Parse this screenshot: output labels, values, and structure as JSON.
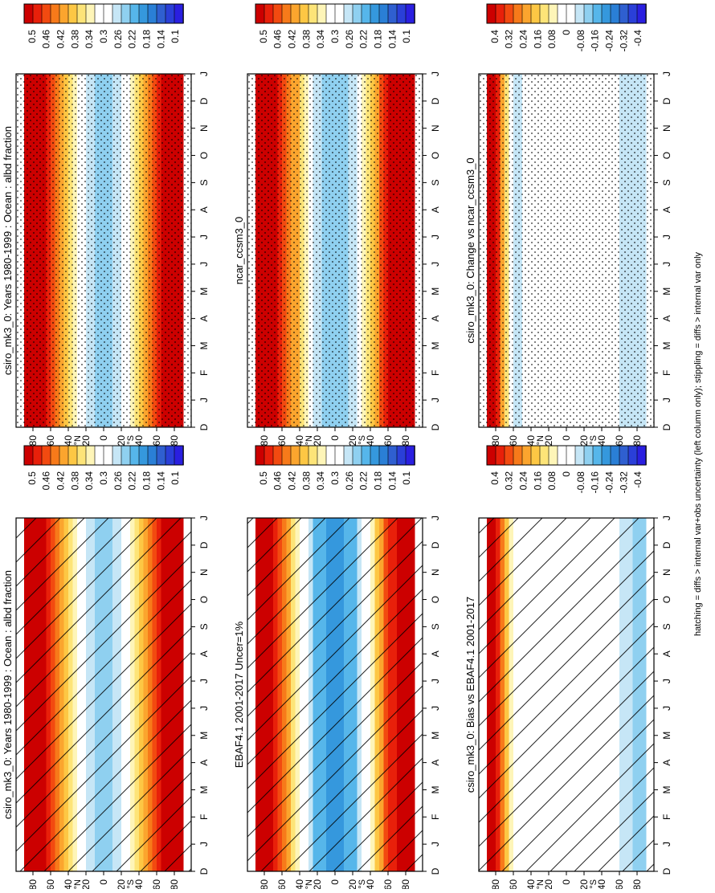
{
  "footnote": "hatching = diffs > internal var+obs uncertainty (left column only); stippling = diffs > internal var only",
  "months": [
    "D",
    "J",
    "F",
    "M",
    "A",
    "M",
    "J",
    "J",
    "A",
    "S",
    "O",
    "N",
    "D",
    "J"
  ],
  "lat_ticks": [
    "80",
    "60",
    "40",
    "20",
    "0",
    "20",
    "40",
    "60",
    "80"
  ],
  "lat_tick_values": [
    80,
    60,
    40,
    20,
    0,
    -20,
    -40,
    -60,
    -80
  ],
  "hemisphere_labels": {
    "north": "N",
    "south": "S"
  },
  "colorbars": {
    "abs": {
      "labels": [
        "0.5",
        "0.46",
        "0.42",
        "0.38",
        "0.34",
        "0.3",
        "0.26",
        "0.22",
        "0.18",
        "0.14",
        "0.1"
      ],
      "colors": [
        "#cc0000",
        "#e8200a",
        "#f24a10",
        "#f77a1a",
        "#fba52e",
        "#fdc744",
        "#fde478",
        "#fef5b8",
        "#ffffff",
        "#ffffff",
        "#c6e6f6",
        "#8fd0f0",
        "#56b6ea",
        "#3598dd",
        "#2a7fd6",
        "#2f5fd0",
        "#2a3fd8",
        "#2a1fe0"
      ]
    },
    "diff": {
      "labels": [
        "0.4",
        "0.32",
        "0.24",
        "0.16",
        "0.08",
        "0",
        "-0.08",
        "-0.16",
        "-0.24",
        "-0.32",
        "-0.4"
      ],
      "colors": [
        "#cc0000",
        "#e8200a",
        "#f24a10",
        "#f77a1a",
        "#fba52e",
        "#fdc744",
        "#fde478",
        "#fef5b8",
        "#ffffff",
        "#ffffff",
        "#c6e6f6",
        "#8fd0f0",
        "#56b6ea",
        "#3598dd",
        "#2a7fd6",
        "#2f5fd0",
        "#2a3fd8",
        "#2a1fe0"
      ]
    }
  },
  "panels": [
    {
      "title": "csiro_mk3_0: Years 1980-1999 : Ocean : albd fraction",
      "overlay": "hatch"
    },
    {
      "title": "EBAF4.1 2001-2017 Uncer=1%",
      "overlay": "hatch"
    },
    {
      "title": "csiro_mk3_0: Bias vs EBAF4.1 2001-2017",
      "overlay": "hatch"
    },
    {
      "title": "csiro_mk3_0: Years 1980-1999 : Ocean : albd fraction",
      "overlay": "stipple"
    },
    {
      "title": "ncar_ccsm3_0",
      "overlay": "stipple"
    },
    {
      "title": "csiro_mk3_0: Change vs ncar_ccsm3_0",
      "overlay": "stipple"
    }
  ],
  "chart_data": [
    {
      "type": "heatmap",
      "title": "csiro_mk3_0: Years 1980-1999 : Ocean : albd fraction",
      "x": [
        "D",
        "J",
        "F",
        "M",
        "A",
        "M",
        "J",
        "J",
        "A",
        "S",
        "O",
        "N",
        "D",
        "J"
      ],
      "y_range": [
        -90,
        90
      ],
      "zlim": [
        0.1,
        0.5
      ],
      "units": "fraction",
      "profile_lat": [
        80,
        60,
        40,
        20,
        0,
        -20,
        -40,
        -60,
        -80
      ],
      "profile_value": [
        0.52,
        0.46,
        0.36,
        0.27,
        0.24,
        0.27,
        0.36,
        0.46,
        0.52
      ],
      "overlay": "hatching"
    },
    {
      "type": "heatmap",
      "title": "EBAF4.1 2001-2017 Uncer=1%",
      "x": [
        "D",
        "J",
        "F",
        "M",
        "A",
        "M",
        "J",
        "J",
        "A",
        "S",
        "O",
        "N",
        "D",
        "J"
      ],
      "y_range": [
        -90,
        90
      ],
      "zlim": [
        0.1,
        0.5
      ],
      "units": "fraction",
      "profile_lat": [
        80,
        60,
        40,
        20,
        0,
        -20,
        -40,
        -60,
        -80
      ],
      "profile_value": [
        0.52,
        0.44,
        0.32,
        0.22,
        0.2,
        0.22,
        0.32,
        0.45,
        0.52
      ],
      "overlay": "hatching"
    },
    {
      "type": "heatmap",
      "title": "csiro_mk3_0: Bias vs EBAF4.1 2001-2017",
      "x": [
        "D",
        "J",
        "F",
        "M",
        "A",
        "M",
        "J",
        "J",
        "A",
        "S",
        "O",
        "N",
        "D",
        "J"
      ],
      "y_range": [
        -90,
        90
      ],
      "zlim": [
        -0.4,
        0.4
      ],
      "units": "fraction",
      "profile_lat": [
        80,
        60,
        40,
        20,
        0,
        -20,
        -40,
        -60,
        -80
      ],
      "profile_value": [
        0.4,
        0.0,
        0.04,
        0.04,
        0.04,
        0.04,
        0.04,
        -0.04,
        -0.1
      ],
      "overlay": "hatching"
    },
    {
      "type": "heatmap",
      "title": "csiro_mk3_0: Years 1980-1999 : Ocean : albd fraction",
      "x": [
        "D",
        "J",
        "F",
        "M",
        "A",
        "M",
        "J",
        "J",
        "A",
        "S",
        "O",
        "N",
        "D",
        "J"
      ],
      "y_range": [
        -90,
        90
      ],
      "zlim": [
        0.1,
        0.5
      ],
      "units": "fraction",
      "profile_lat": [
        80,
        60,
        40,
        20,
        0,
        -20,
        -40,
        -60,
        -80
      ],
      "profile_value": [
        0.52,
        0.46,
        0.36,
        0.27,
        0.24,
        0.27,
        0.36,
        0.46,
        0.52
      ],
      "overlay": "stippling"
    },
    {
      "type": "heatmap",
      "title": "ncar_ccsm3_0",
      "x": [
        "D",
        "J",
        "F",
        "M",
        "A",
        "M",
        "J",
        "J",
        "A",
        "S",
        "O",
        "N",
        "D",
        "J"
      ],
      "y_range": [
        -90,
        90
      ],
      "zlim": [
        0.1,
        0.5
      ],
      "units": "fraction",
      "profile_lat": [
        80,
        60,
        40,
        20,
        0,
        -20,
        -40,
        -60,
        -80
      ],
      "profile_value": [
        0.52,
        0.46,
        0.38,
        0.26,
        0.23,
        0.26,
        0.36,
        0.48,
        0.54
      ],
      "overlay": "stippling"
    },
    {
      "type": "heatmap",
      "title": "csiro_mk3_0: Change vs ncar_ccsm3_0",
      "x": [
        "D",
        "J",
        "F",
        "M",
        "A",
        "M",
        "J",
        "J",
        "A",
        "S",
        "O",
        "N",
        "D",
        "J"
      ],
      "y_range": [
        -90,
        90
      ],
      "zlim": [
        -0.4,
        0.4
      ],
      "units": "fraction",
      "profile_lat": [
        80,
        60,
        40,
        20,
        0,
        -20,
        -40,
        -60,
        -80
      ],
      "profile_value": [
        0.4,
        -0.08,
        0.0,
        0.04,
        0.0,
        0.0,
        0.0,
        -0.04,
        -0.08
      ],
      "overlay": "stippling"
    }
  ]
}
